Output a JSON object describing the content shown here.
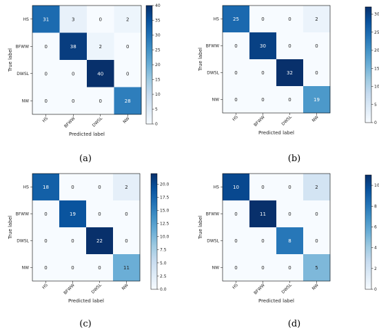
{
  "chart_data": [
    {
      "type": "heatmap",
      "caption": "(a)",
      "xlabel": "Predicted label",
      "ylabel": "True label",
      "categories": [
        "HS",
        "BFWW",
        "DWSL",
        "NW"
      ],
      "values": [
        [
          31,
          3,
          0,
          2
        ],
        [
          0,
          38,
          2,
          0
        ],
        [
          0,
          0,
          40,
          0
        ],
        [
          0,
          0,
          0,
          28
        ]
      ],
      "vmax": 40,
      "colorbar_ticks": [
        0,
        5,
        10,
        15,
        20,
        25,
        30,
        35,
        40
      ],
      "colorbar_tick_labels": [
        "0",
        "5",
        "10",
        "15",
        "20",
        "25",
        "30",
        "35",
        "40"
      ],
      "colormap": "Blues"
    },
    {
      "type": "heatmap",
      "caption": "(b)",
      "xlabel": "Predicted label",
      "ylabel": "True label",
      "categories": [
        "HS",
        "BFWW",
        "DWSL",
        "NW"
      ],
      "values": [
        [
          25,
          0,
          0,
          2
        ],
        [
          0,
          30,
          0,
          0
        ],
        [
          0,
          0,
          32,
          0
        ],
        [
          0,
          0,
          0,
          19
        ]
      ],
      "vmax": 32,
      "colorbar_ticks": [
        0,
        5,
        10,
        15,
        20,
        25,
        30
      ],
      "colorbar_tick_labels": [
        "0",
        "5",
        "10",
        "15",
        "20",
        "25",
        "30"
      ],
      "colormap": "Blues"
    },
    {
      "type": "heatmap",
      "caption": "(c)",
      "xlabel": "Predicted label",
      "ylabel": "True label",
      "categories": [
        "HS",
        "BFWW",
        "DWSL",
        "NW"
      ],
      "values": [
        [
          18,
          0,
          0,
          2
        ],
        [
          0,
          19,
          0,
          0
        ],
        [
          0,
          0,
          22,
          0
        ],
        [
          0,
          0,
          0,
          11
        ]
      ],
      "vmax": 22,
      "colorbar_ticks": [
        0,
        2.5,
        5,
        7.5,
        10,
        12.5,
        15,
        17.5,
        20
      ],
      "colorbar_tick_labels": [
        "0.0",
        "2.5",
        "5.0",
        "7.5",
        "10.0",
        "12.5",
        "15.0",
        "17.5",
        "20.0"
      ],
      "colormap": "Blues"
    },
    {
      "type": "heatmap",
      "caption": "(d)",
      "xlabel": "Predicted label",
      "ylabel": "True label",
      "categories": [
        "HS",
        "BFWW",
        "DWSL",
        "NW"
      ],
      "values": [
        [
          10,
          0,
          0,
          2
        ],
        [
          0,
          11,
          0,
          0
        ],
        [
          0,
          0,
          8,
          0
        ],
        [
          0,
          0,
          0,
          5
        ]
      ],
      "vmax": 11,
      "colorbar_ticks": [
        0,
        2,
        4,
        6,
        8,
        10
      ],
      "colorbar_tick_labels": [
        "0",
        "2",
        "4",
        "6",
        "8",
        "10"
      ],
      "colormap": "Blues"
    }
  ]
}
